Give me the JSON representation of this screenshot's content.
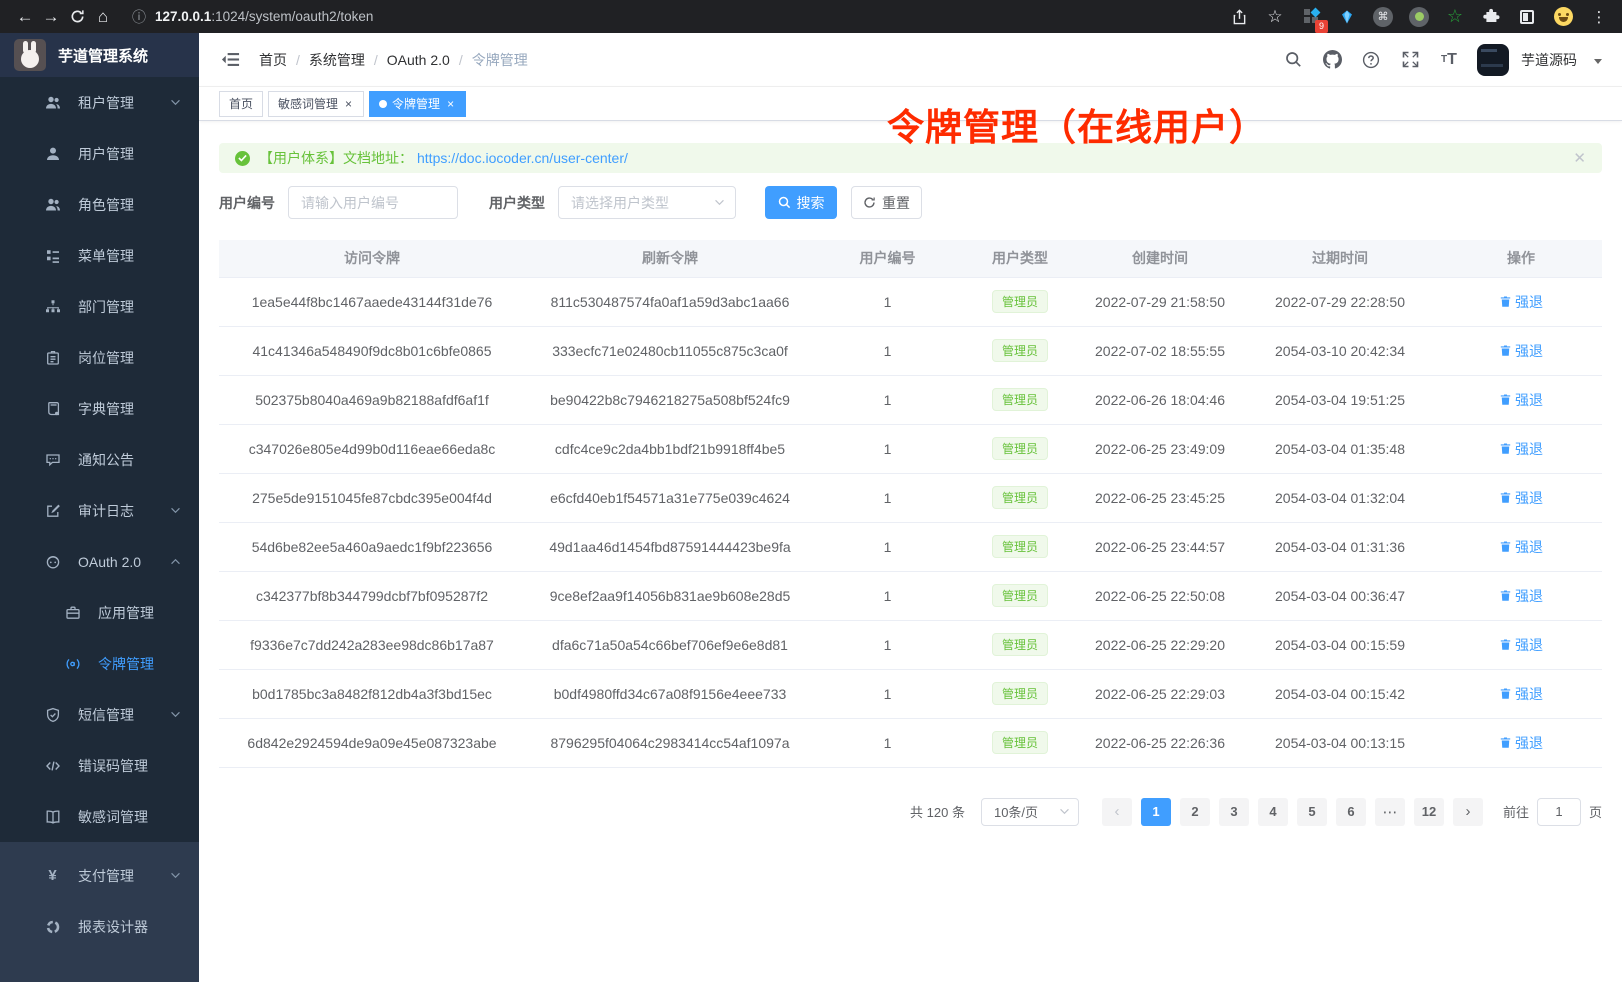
{
  "browser": {
    "url_host": "127.0.0.1",
    "url_path": ":1024/system/oauth2/token",
    "extensions_badge": "9"
  },
  "sidebar": {
    "app_title": "芋道管理系统",
    "items": [
      {
        "label": "租户管理",
        "icon": "users",
        "chevron": "down"
      },
      {
        "label": "用户管理",
        "icon": "user"
      },
      {
        "label": "角色管理",
        "icon": "user-group"
      },
      {
        "label": "菜单管理",
        "icon": "menu-tree"
      },
      {
        "label": "部门管理",
        "icon": "org-tree"
      },
      {
        "label": "岗位管理",
        "icon": "id-badge"
      },
      {
        "label": "字典管理",
        "icon": "dictionary"
      },
      {
        "label": "通知公告",
        "icon": "chat-bubble"
      },
      {
        "label": "审计日志",
        "icon": "audit-log",
        "chevron": "down"
      },
      {
        "label": "OAuth 2.0",
        "icon": "oauth-robot",
        "chevron": "up"
      },
      {
        "label": "应用管理",
        "icon": "briefcase",
        "indent": true
      },
      {
        "label": "令牌管理",
        "icon": "token-signal",
        "indent": true,
        "active": true
      },
      {
        "label": "短信管理",
        "icon": "shield-check",
        "chevron": "down"
      },
      {
        "label": "错误码管理",
        "icon": "code-brackets"
      },
      {
        "label": "敏感词管理",
        "icon": "open-book"
      }
    ],
    "bottom_items": [
      {
        "label": "支付管理",
        "icon": "yen",
        "chevron": "down"
      },
      {
        "label": "报表设计器",
        "icon": "report-donut"
      }
    ]
  },
  "header": {
    "breadcrumb": [
      "首页",
      "系统管理",
      "OAuth 2.0",
      "令牌管理"
    ],
    "user_name": "芋道源码"
  },
  "tags_view": {
    "tabs": [
      {
        "label": "首页",
        "closable": false,
        "active": false
      },
      {
        "label": "敏感词管理",
        "closable": true,
        "active": false
      },
      {
        "label": "令牌管理",
        "closable": true,
        "active": true
      }
    ]
  },
  "annotation": {
    "text": "令牌管理（在线用户）",
    "color": "#fe2b00"
  },
  "alert": {
    "prefix": "【用户体系】文档地址：",
    "link": "https://doc.iocoder.cn/user-center/"
  },
  "filters": {
    "user_id_label": "用户编号",
    "user_id_placeholder": "请输入用户编号",
    "user_type_label": "用户类型",
    "user_type_placeholder": "请选择用户类型",
    "search_label": "搜索",
    "reset_label": "重置"
  },
  "table": {
    "columns": [
      "访问令牌",
      "刷新令牌",
      "用户编号",
      "用户类型",
      "创建时间",
      "过期时间",
      "操作"
    ],
    "action_label": "强退",
    "rows": [
      {
        "access_token": "1ea5e44f8bc1467aaede43144f31de76",
        "refresh_token": "811c530487574fa0af1a59d3abc1aa66",
        "user_id": "1",
        "user_type": "管理员",
        "created_at": "2022-07-29 21:58:50",
        "expires_at": "2022-07-29 22:28:50"
      },
      {
        "access_token": "41c41346a548490f9dc8b01c6bfe0865",
        "refresh_token": "333ecfc71e02480cb11055c875c3ca0f",
        "user_id": "1",
        "user_type": "管理员",
        "created_at": "2022-07-02 18:55:55",
        "expires_at": "2054-03-10 20:42:34"
      },
      {
        "access_token": "502375b8040a469a9b82188afdf6af1f",
        "refresh_token": "be90422b8c7946218275a508bf524fc9",
        "user_id": "1",
        "user_type": "管理员",
        "created_at": "2022-06-26 18:04:46",
        "expires_at": "2054-03-04 19:51:25"
      },
      {
        "access_token": "c347026e805e4d99b0d116eae66eda8c",
        "refresh_token": "cdfc4ce9c2da4bb1bdf21b9918ff4be5",
        "user_id": "1",
        "user_type": "管理员",
        "created_at": "2022-06-25 23:49:09",
        "expires_at": "2054-03-04 01:35:48"
      },
      {
        "access_token": "275e5de9151045fe87cbdc395e004f4d",
        "refresh_token": "e6cfd40eb1f54571a31e775e039c4624",
        "user_id": "1",
        "user_type": "管理员",
        "created_at": "2022-06-25 23:45:25",
        "expires_at": "2054-03-04 01:32:04"
      },
      {
        "access_token": "54d6be82ee5a460a9aedc1f9bf223656",
        "refresh_token": "49d1aa46d1454fbd87591444423be9fa",
        "user_id": "1",
        "user_type": "管理员",
        "created_at": "2022-06-25 23:44:57",
        "expires_at": "2054-03-04 01:31:36"
      },
      {
        "access_token": "c342377bf8b344799dcbf7bf095287f2",
        "refresh_token": "9ce8ef2aa9f14056b831ae9b608e28d5",
        "user_id": "1",
        "user_type": "管理员",
        "created_at": "2022-06-25 22:50:08",
        "expires_at": "2054-03-04 00:36:47"
      },
      {
        "access_token": "f9336e7c7dd242a283ee98dc86b17a87",
        "refresh_token": "dfa6c71a50a54c66bef706ef9e6e8d81",
        "user_id": "1",
        "user_type": "管理员",
        "created_at": "2022-06-25 22:29:20",
        "expires_at": "2054-03-04 00:15:59"
      },
      {
        "access_token": "b0d1785bc3a8482f812db4a3f3bd15ec",
        "refresh_token": "b0df4980ffd34c67a08f9156e4eee733",
        "user_id": "1",
        "user_type": "管理员",
        "created_at": "2022-06-25 22:29:03",
        "expires_at": "2054-03-04 00:15:42"
      },
      {
        "access_token": "6d842e2924594de9a09e45e087323abe",
        "refresh_token": "8796295f04064c2983414cc54af1097a",
        "user_id": "1",
        "user_type": "管理员",
        "created_at": "2022-06-25 22:26:36",
        "expires_at": "2054-03-04 00:13:15"
      }
    ]
  },
  "pagination": {
    "total": "共 120 条",
    "page_size": "10条/页",
    "pages": [
      "1",
      "2",
      "3",
      "4",
      "5",
      "6",
      "⋯",
      "12"
    ],
    "active_page": "1",
    "goto_label": "前往",
    "goto_value": "1",
    "goto_suffix": "页"
  },
  "colors": {
    "primary": "#409eff",
    "success": "#67c23a",
    "annotation_red": "#fe2b00"
  }
}
